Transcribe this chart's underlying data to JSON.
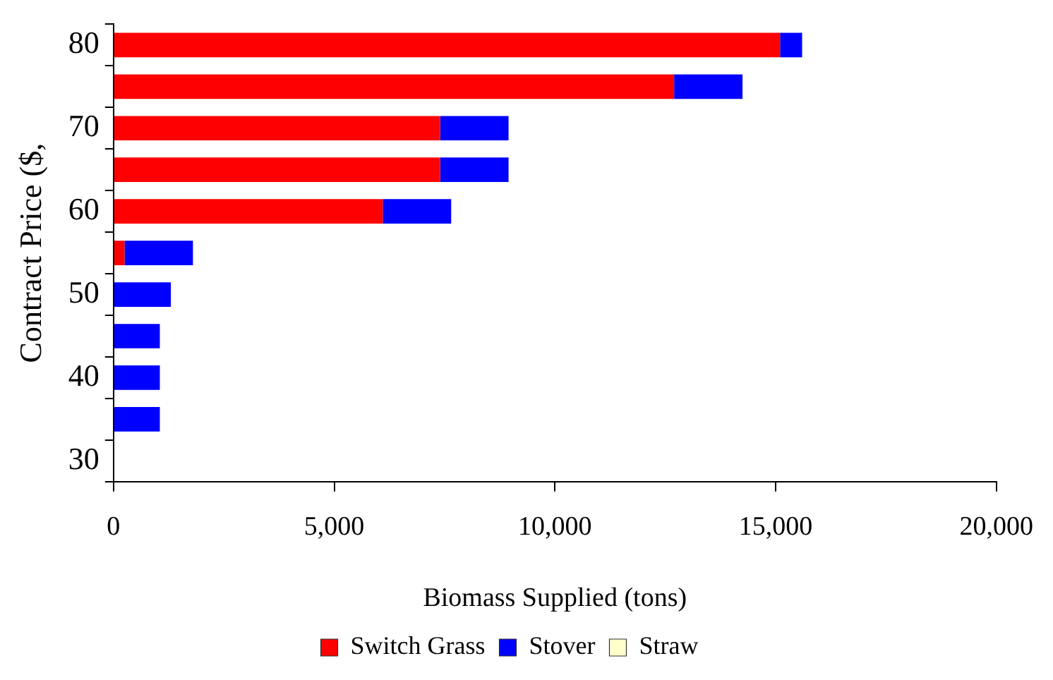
{
  "chart_data": {
    "type": "bar",
    "orientation": "horizontal",
    "stacked": true,
    "xlabel": "Biomass Supplied (tons)",
    "ylabel": "Contract Price ($,",
    "categories": [
      "80",
      null,
      "70",
      null,
      "60",
      null,
      "50",
      null,
      "40",
      null,
      "30"
    ],
    "series": [
      {
        "name": "Switch Grass",
        "color": "#ff0000",
        "values": [
          15100,
          12700,
          7400,
          7400,
          6100,
          250,
          0,
          0,
          0,
          0,
          0
        ]
      },
      {
        "name": "Stover",
        "color": "#0000ff",
        "values": [
          500,
          1550,
          1550,
          1550,
          1550,
          1550,
          1300,
          1050,
          1050,
          1050,
          0
        ]
      },
      {
        "name": "Straw",
        "color": "#ffffcc",
        "values": [
          0,
          0,
          0,
          0,
          0,
          0,
          0,
          0,
          0,
          0,
          0
        ]
      }
    ],
    "xlim": [
      0,
      20000
    ],
    "xticks": [
      0,
      {
        "value": 5000,
        "label": "5,000"
      },
      {
        "value": 10000,
        "label": "10,000"
      },
      {
        "value": 15000,
        "label": "15,000"
      },
      {
        "value": 20000,
        "label": "20,000"
      }
    ],
    "grid": false,
    "legend": "bottom"
  }
}
